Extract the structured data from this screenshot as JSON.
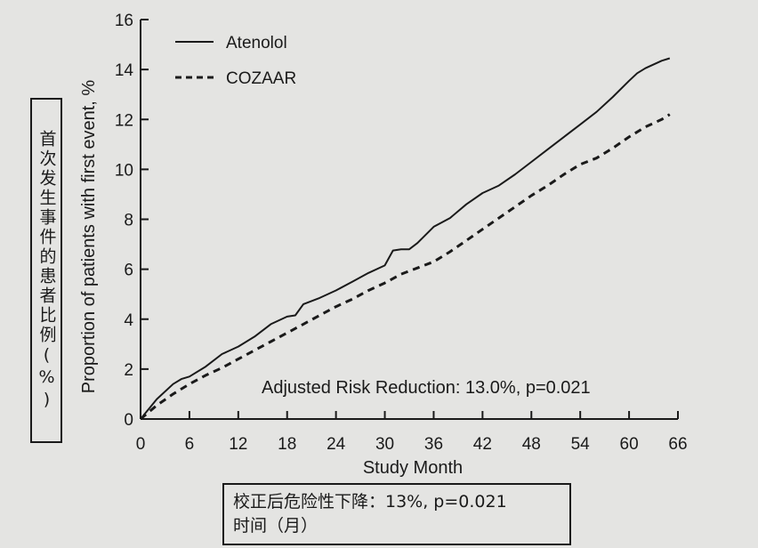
{
  "chart_data": {
    "type": "line",
    "title": "",
    "xlabel": "Study Month",
    "ylabel": "Proportion of patients with first event, %",
    "xlim": [
      0,
      66
    ],
    "ylim": [
      0,
      16
    ],
    "xticks": [
      0,
      6,
      12,
      18,
      24,
      30,
      36,
      42,
      48,
      54,
      60,
      66
    ],
    "yticks": [
      0,
      2,
      4,
      6,
      8,
      10,
      12,
      14,
      16
    ],
    "grid": false,
    "legend": "top-left",
    "series": [
      {
        "name": "Atenolol",
        "style": "solid",
        "x": [
          0,
          2,
          4,
          5,
          6,
          8,
          10,
          12,
          14,
          16,
          18,
          19,
          20,
          22,
          24,
          26,
          28,
          30,
          31,
          32,
          33,
          34,
          36,
          38,
          40,
          42,
          44,
          46,
          48,
          50,
          52,
          54,
          56,
          58,
          60,
          61,
          62,
          64,
          65
        ],
        "y": [
          0,
          0.8,
          1.4,
          1.6,
          1.7,
          2.1,
          2.6,
          2.9,
          3.3,
          3.8,
          4.1,
          4.15,
          4.6,
          4.85,
          5.15,
          5.5,
          5.85,
          6.15,
          6.75,
          6.8,
          6.8,
          7.05,
          7.7,
          8.05,
          8.6,
          9.05,
          9.35,
          9.8,
          10.3,
          10.8,
          11.3,
          11.8,
          12.3,
          12.9,
          13.55,
          13.85,
          14.05,
          14.35,
          14.45
        ]
      },
      {
        "name": "COZAAR",
        "style": "dashed",
        "x": [
          0,
          2,
          4,
          6,
          8,
          10,
          12,
          14,
          16,
          18,
          20,
          22,
          24,
          26,
          28,
          30,
          32,
          34,
          36,
          38,
          40,
          42,
          44,
          46,
          48,
          50,
          52,
          54,
          56,
          58,
          60,
          62,
          64,
          65
        ],
        "y": [
          0,
          0.55,
          1.0,
          1.4,
          1.75,
          2.05,
          2.4,
          2.75,
          3.1,
          3.45,
          3.8,
          4.15,
          4.5,
          4.8,
          5.15,
          5.45,
          5.8,
          6.05,
          6.3,
          6.7,
          7.15,
          7.6,
          8.05,
          8.5,
          8.95,
          9.35,
          9.8,
          10.2,
          10.45,
          10.85,
          11.3,
          11.7,
          12.0,
          12.2
        ]
      }
    ],
    "annotation": "Adjusted Risk Reduction: 13.0%, p=0.021"
  },
  "overlay": {
    "ylabel_cn": "首次发生事件的患者比例(%)",
    "annotation_cn": "校正后危险性下降：13%, p=0.021",
    "xlabel_cn": "时间（月）"
  },
  "colors": {
    "background": "#e4e4e2",
    "ink": "#1a1a1a"
  }
}
